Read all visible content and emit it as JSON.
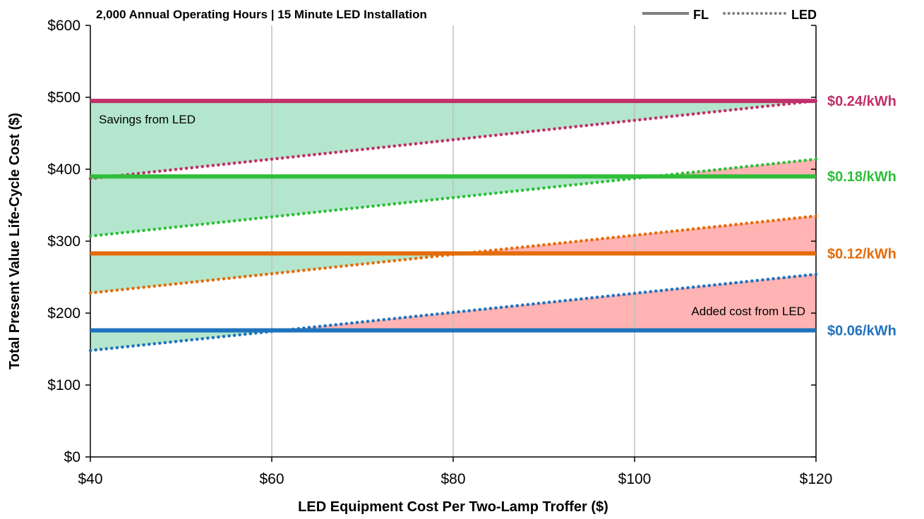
{
  "chart_data": {
    "type": "line",
    "title": "2,000 Annual Operating Hours | 15 Minute LED Installation",
    "xlabel": "LED Equipment Cost Per Two-Lamp Troffer ($)",
    "ylabel": "Total Present Value Life-Cycle Cost ($)",
    "xlim": [
      40,
      120
    ],
    "ylim": [
      0,
      600
    ],
    "x_ticks": [
      40,
      60,
      80,
      100,
      120
    ],
    "x_tick_labels": [
      "$40",
      "$60",
      "$80",
      "$100",
      "$120"
    ],
    "y_ticks": [
      0,
      100,
      200,
      300,
      400,
      500,
      600
    ],
    "y_tick_labels": [
      "$0",
      "$100",
      "$200",
      "$300",
      "$400",
      "$500",
      "$600"
    ],
    "grid": "vertical",
    "legend": {
      "position": "top-right",
      "entries": [
        {
          "label": "FL",
          "style": "solid"
        },
        {
          "label": "LED",
          "style": "dotted"
        }
      ]
    },
    "series": [
      {
        "name": "$0.24/kWh",
        "color": "#C0306A",
        "fl": 495,
        "led": [
          [
            40,
            387
          ],
          [
            120,
            495
          ]
        ]
      },
      {
        "name": "$0.18/kWh",
        "color": "#2EBE3A",
        "fl": 390,
        "led": [
          [
            40,
            307
          ],
          [
            120,
            414
          ]
        ]
      },
      {
        "name": "$0.12/kWh",
        "color": "#E46C0A",
        "fl": 283,
        "led": [
          [
            40,
            228
          ],
          [
            120,
            335
          ]
        ]
      },
      {
        "name": "$0.06/kWh",
        "color": "#1F73BE",
        "fl": 176,
        "led": [
          [
            40,
            148
          ],
          [
            120,
            254
          ]
        ]
      }
    ],
    "savings_color": "#B3E6CC",
    "cost_color": "#FFB3B3",
    "annotations": {
      "savings": "Savings from LED",
      "added_cost": "Added cost from LED"
    }
  }
}
